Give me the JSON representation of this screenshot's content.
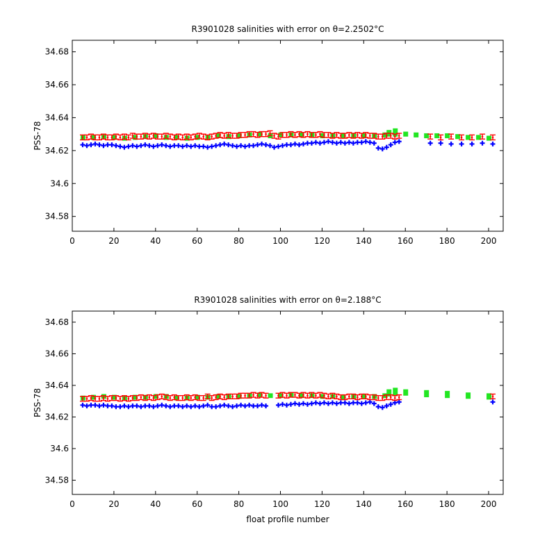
{
  "colors": {
    "error_band": "#22e622",
    "calibrated": "#ff0000",
    "uncalibrated": "#0000ff",
    "axes": "#000000",
    "background": "#ffffff"
  },
  "chart_data": [
    {
      "type": "scatter",
      "title": "R3901028 salinities with error on θ=2.2502°C",
      "xlabel": "",
      "ylabel": "PSS-78",
      "xlim": [
        0,
        207
      ],
      "ylim": [
        34.571,
        34.687
      ],
      "xticks": [
        "0",
        "20",
        "40",
        "60",
        "80",
        "100",
        "120",
        "140",
        "160",
        "180",
        "200"
      ],
      "yticks": [
        "34.58",
        "34.6",
        "34.62",
        "34.64",
        "34.66",
        "34.68"
      ],
      "grid": false,
      "series": [
        {
          "role": "error_band",
          "x": [
            5,
            10,
            15,
            20,
            25,
            30,
            35,
            40,
            45,
            50,
            55,
            60,
            65,
            70,
            75,
            80,
            85,
            90,
            95,
            100,
            105,
            110,
            115,
            120,
            125,
            130,
            135,
            140,
            145,
            150,
            152,
            155,
            160,
            165,
            170,
            175,
            180,
            185,
            190,
            195,
            200
          ],
          "y": [
            34.6295,
            34.6295,
            34.63,
            34.6295,
            34.629,
            34.6295,
            34.63,
            34.6305,
            34.6295,
            34.6295,
            34.629,
            34.6295,
            34.6295,
            34.6305,
            34.63,
            34.6305,
            34.631,
            34.6315,
            34.6305,
            34.631,
            34.631,
            34.631,
            34.631,
            34.6305,
            34.6305,
            34.6305,
            34.6305,
            34.6305,
            34.6305,
            34.631,
            34.6325,
            34.6335,
            34.6315,
            34.631,
            34.6305,
            34.6305,
            34.6305,
            34.63,
            34.6295,
            34.6295,
            34.629
          ],
          "y_low": [
            34.6265,
            34.6265,
            34.627,
            34.6265,
            34.626,
            34.6265,
            34.627,
            34.6275,
            34.6265,
            34.6265,
            34.626,
            34.6265,
            34.6265,
            34.6275,
            34.627,
            34.6275,
            34.628,
            34.6285,
            34.6275,
            34.628,
            34.628,
            34.628,
            34.628,
            34.6275,
            34.6275,
            34.6275,
            34.6275,
            34.6275,
            34.6275,
            34.628,
            34.6285,
            34.6285,
            34.6285,
            34.628,
            34.6275,
            34.6275,
            34.6275,
            34.627,
            34.6265,
            34.6265,
            34.626
          ]
        },
        {
          "role": "uncalibrated",
          "x": [
            5,
            7,
            9,
            11,
            13,
            15,
            17,
            19,
            21,
            23,
            25,
            27,
            29,
            31,
            33,
            35,
            37,
            39,
            41,
            43,
            45,
            47,
            49,
            51,
            53,
            55,
            57,
            59,
            61,
            63,
            65,
            67,
            69,
            71,
            73,
            75,
            77,
            79,
            81,
            83,
            85,
            87,
            89,
            91,
            93,
            95,
            97,
            99,
            101,
            103,
            105,
            107,
            109,
            111,
            113,
            115,
            117,
            119,
            121,
            123,
            125,
            127,
            129,
            131,
            133,
            135,
            137,
            139,
            141,
            143,
            145,
            147,
            149,
            151,
            153,
            155,
            157,
            172,
            177,
            182,
            187,
            192,
            197,
            202
          ],
          "y": [
            34.6235,
            34.623,
            34.6235,
            34.624,
            34.6235,
            34.623,
            34.6235,
            34.6235,
            34.623,
            34.6225,
            34.622,
            34.6225,
            34.623,
            34.6225,
            34.623,
            34.6235,
            34.623,
            34.6225,
            34.623,
            34.6235,
            34.623,
            34.6225,
            34.623,
            34.623,
            34.6225,
            34.623,
            34.6225,
            34.623,
            34.6225,
            34.6225,
            34.622,
            34.6225,
            34.623,
            34.6235,
            34.624,
            34.6235,
            34.623,
            34.6225,
            34.623,
            34.6225,
            34.623,
            34.623,
            34.6235,
            34.624,
            34.6235,
            34.623,
            34.622,
            34.6225,
            34.623,
            34.6235,
            34.6235,
            34.624,
            34.6235,
            34.624,
            34.6245,
            34.6245,
            34.625,
            34.6245,
            34.625,
            34.6255,
            34.625,
            34.6245,
            34.625,
            34.6245,
            34.625,
            34.6245,
            34.625,
            34.625,
            34.6255,
            34.625,
            34.6245,
            34.6215,
            34.621,
            34.622,
            34.6235,
            34.625,
            34.6255,
            34.6245,
            34.6245,
            34.624,
            34.624,
            34.624,
            34.6245,
            34.624
          ]
        },
        {
          "role": "calibrated",
          "x": [
            5,
            7,
            9,
            11,
            13,
            15,
            17,
            19,
            21,
            23,
            25,
            27,
            29,
            31,
            33,
            35,
            37,
            39,
            41,
            43,
            45,
            47,
            49,
            51,
            53,
            55,
            57,
            59,
            61,
            63,
            65,
            67,
            69,
            71,
            73,
            75,
            77,
            79,
            81,
            83,
            85,
            87,
            89,
            91,
            93,
            95,
            97,
            99,
            101,
            103,
            105,
            107,
            109,
            111,
            113,
            115,
            117,
            119,
            121,
            123,
            125,
            127,
            129,
            131,
            133,
            135,
            137,
            139,
            141,
            143,
            145,
            147,
            149,
            151,
            153,
            155,
            157,
            172,
            177,
            182,
            187,
            192,
            197,
            202
          ],
          "y": [
            34.628,
            34.628,
            34.6285,
            34.628,
            34.628,
            34.6285,
            34.628,
            34.628,
            34.6285,
            34.628,
            34.6285,
            34.628,
            34.629,
            34.6285,
            34.6285,
            34.629,
            34.6285,
            34.629,
            34.6285,
            34.6285,
            34.629,
            34.6285,
            34.628,
            34.6285,
            34.628,
            34.6285,
            34.628,
            34.6285,
            34.629,
            34.6285,
            34.628,
            34.6285,
            34.629,
            34.6295,
            34.629,
            34.6295,
            34.629,
            34.629,
            34.6295,
            34.6295,
            34.63,
            34.63,
            34.6295,
            34.63,
            34.63,
            34.6305,
            34.629,
            34.6285,
            34.6295,
            34.6295,
            34.63,
            34.6295,
            34.63,
            34.6295,
            34.63,
            34.6295,
            34.6295,
            34.63,
            34.6295,
            34.6295,
            34.629,
            34.6295,
            34.629,
            34.629,
            34.6295,
            34.629,
            34.6295,
            34.629,
            34.6295,
            34.629,
            34.629,
            34.6285,
            34.6285,
            34.629,
            34.629,
            34.6285,
            34.629,
            34.6285,
            34.628,
            34.6285,
            34.628,
            34.628,
            34.6285,
            34.628
          ],
          "err": 0.0015
        }
      ]
    },
    {
      "type": "scatter",
      "title": "R3901028 salinities with error on θ=2.188°C",
      "xlabel": "float profile number",
      "ylabel": "PSS-78",
      "xlim": [
        0,
        207
      ],
      "ylim": [
        34.571,
        34.687
      ],
      "xticks": [
        "0",
        "20",
        "40",
        "60",
        "80",
        "100",
        "120",
        "140",
        "160",
        "180",
        "200"
      ],
      "yticks": [
        "34.58",
        "34.6",
        "34.62",
        "34.64",
        "34.66",
        "34.68"
      ],
      "grid": false,
      "series": [
        {
          "role": "error_band",
          "x": [
            5,
            10,
            15,
            20,
            25,
            30,
            35,
            40,
            45,
            50,
            55,
            60,
            65,
            70,
            75,
            80,
            85,
            90,
            95,
            100,
            105,
            110,
            115,
            120,
            125,
            130,
            135,
            140,
            145,
            150,
            152,
            155,
            160,
            170,
            180,
            190,
            200
          ],
          "y": [
            34.6335,
            34.634,
            34.6345,
            34.634,
            34.6335,
            34.634,
            34.634,
            34.6345,
            34.6345,
            34.6335,
            34.6335,
            34.634,
            34.634,
            34.6345,
            34.6345,
            34.6345,
            34.635,
            34.6355,
            34.635,
            34.635,
            34.6355,
            34.635,
            34.635,
            34.6345,
            34.6345,
            34.634,
            34.6345,
            34.6345,
            34.6345,
            34.635,
            34.6375,
            34.6385,
            34.6375,
            34.637,
            34.6365,
            34.6355,
            34.635
          ],
          "y_low": [
            34.6305,
            34.631,
            34.6315,
            34.631,
            34.6305,
            34.631,
            34.631,
            34.6315,
            34.6315,
            34.6305,
            34.6305,
            34.631,
            34.631,
            34.6315,
            34.6315,
            34.6315,
            34.632,
            34.6325,
            34.632,
            34.632,
            34.6325,
            34.632,
            34.632,
            34.6315,
            34.6315,
            34.631,
            34.6315,
            34.6315,
            34.6315,
            34.632,
            34.633,
            34.6335,
            34.6335,
            34.6325,
            34.632,
            34.6315,
            34.631
          ]
        },
        {
          "role": "uncalibrated",
          "x": [
            5,
            7,
            9,
            11,
            13,
            15,
            17,
            19,
            21,
            23,
            25,
            27,
            29,
            31,
            33,
            35,
            37,
            39,
            41,
            43,
            45,
            47,
            49,
            51,
            53,
            55,
            57,
            59,
            61,
            63,
            65,
            67,
            69,
            71,
            73,
            75,
            77,
            79,
            81,
            83,
            85,
            87,
            89,
            91,
            93,
            99,
            101,
            103,
            105,
            107,
            109,
            111,
            113,
            115,
            117,
            119,
            121,
            123,
            125,
            127,
            129,
            131,
            133,
            135,
            137,
            139,
            141,
            143,
            145,
            147,
            149,
            151,
            153,
            155,
            157,
            202
          ],
          "y": [
            34.6275,
            34.627,
            34.6275,
            34.6275,
            34.627,
            34.6275,
            34.627,
            34.627,
            34.6265,
            34.6265,
            34.627,
            34.6265,
            34.627,
            34.627,
            34.6265,
            34.627,
            34.627,
            34.6265,
            34.627,
            34.6275,
            34.627,
            34.6265,
            34.627,
            34.627,
            34.6265,
            34.627,
            34.6265,
            34.627,
            34.6265,
            34.627,
            34.6275,
            34.6265,
            34.6265,
            34.627,
            34.6275,
            34.627,
            34.6265,
            34.627,
            34.6275,
            34.627,
            34.6275,
            34.627,
            34.627,
            34.6275,
            34.627,
            34.6275,
            34.628,
            34.6275,
            34.628,
            34.6285,
            34.628,
            34.6285,
            34.628,
            34.6285,
            34.629,
            34.6285,
            34.629,
            34.6285,
            34.629,
            34.6285,
            34.629,
            34.629,
            34.6285,
            34.629,
            34.629,
            34.6285,
            34.629,
            34.6295,
            34.6285,
            34.6265,
            34.626,
            34.627,
            34.628,
            34.629,
            34.6295,
            34.6295
          ]
        },
        {
          "role": "calibrated",
          "x": [
            5,
            7,
            9,
            11,
            13,
            15,
            17,
            19,
            21,
            23,
            25,
            27,
            29,
            31,
            33,
            35,
            37,
            39,
            41,
            43,
            45,
            47,
            49,
            51,
            53,
            55,
            57,
            59,
            61,
            63,
            65,
            67,
            69,
            71,
            73,
            75,
            77,
            79,
            81,
            83,
            85,
            87,
            89,
            91,
            93,
            99,
            101,
            103,
            105,
            107,
            109,
            111,
            113,
            115,
            117,
            119,
            121,
            123,
            125,
            127,
            129,
            131,
            133,
            135,
            137,
            139,
            141,
            143,
            145,
            147,
            149,
            151,
            153,
            155,
            157,
            202
          ],
          "y": [
            34.6315,
            34.6315,
            34.632,
            34.6315,
            34.6315,
            34.632,
            34.6315,
            34.632,
            34.632,
            34.6315,
            34.632,
            34.6315,
            34.632,
            34.632,
            34.6325,
            34.632,
            34.6325,
            34.632,
            34.6325,
            34.633,
            34.6325,
            34.632,
            34.6325,
            34.632,
            34.632,
            34.6325,
            34.632,
            34.6325,
            34.632,
            34.632,
            34.633,
            34.632,
            34.6325,
            34.633,
            34.6325,
            34.633,
            34.633,
            34.633,
            34.6335,
            34.6335,
            34.6335,
            34.634,
            34.6335,
            34.634,
            34.6335,
            34.6335,
            34.634,
            34.6335,
            34.634,
            34.634,
            34.6335,
            34.634,
            34.6335,
            34.634,
            34.6335,
            34.634,
            34.6335,
            34.633,
            34.6335,
            34.633,
            34.6325,
            34.6325,
            34.633,
            34.633,
            34.6325,
            34.633,
            34.633,
            34.6325,
            34.6325,
            34.632,
            34.632,
            34.6325,
            34.6325,
            34.632,
            34.6325,
            34.633
          ],
          "err": 0.0015
        }
      ]
    }
  ]
}
